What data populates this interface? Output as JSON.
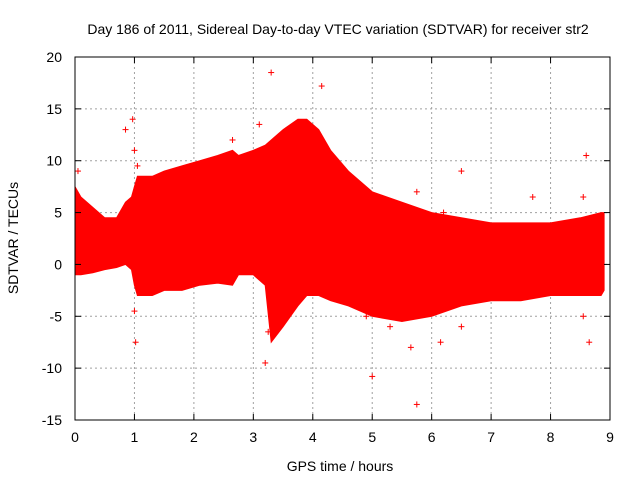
{
  "chart_data": {
    "type": "scatter",
    "title": "Day 186 of 2011, Sidereal Day-to-day VTEC variation (SDTVAR) for receiver str2",
    "xlabel": "GPS time / hours",
    "ylabel": "SDTVAR / TECUs",
    "xlim": [
      0,
      9
    ],
    "ylim": [
      -15,
      20
    ],
    "xticks": [
      0,
      1,
      2,
      3,
      4,
      5,
      6,
      7,
      8,
      9
    ],
    "yticks": [
      -15,
      -10,
      -5,
      0,
      5,
      10,
      15,
      20
    ],
    "grid": true,
    "series": [
      {
        "name": "str2",
        "color": "#ff0000",
        "marker": "+",
        "envelope_x": [
          0,
          0.1,
          0.3,
          0.5,
          0.7,
          0.85,
          0.95,
          1.0,
          1.05,
          1.3,
          1.5,
          1.8,
          2.1,
          2.4,
          2.65,
          2.75,
          3.0,
          3.2,
          3.3,
          3.5,
          3.75,
          3.9,
          4.1,
          4.3,
          4.6,
          5.0,
          5.5,
          6.0,
          6.5,
          7.0,
          7.5,
          8.0,
          8.5,
          8.85,
          8.9
        ],
        "envelope_upper": [
          7.5,
          6.5,
          5.5,
          4.5,
          4.5,
          6.0,
          6.5,
          7.5,
          8.5,
          8.5,
          9.0,
          9.5,
          10.0,
          10.5,
          11.0,
          10.5,
          11.0,
          11.5,
          12.0,
          13.0,
          14.0,
          14.0,
          13.0,
          11.0,
          9.0,
          7.0,
          6.0,
          5.0,
          4.5,
          4.0,
          4.0,
          4.0,
          4.5,
          5.0,
          5.0
        ],
        "envelope_lower": [
          -1.0,
          -1.0,
          -0.8,
          -0.5,
          -0.3,
          0.0,
          -0.5,
          -2.0,
          -3.0,
          -3.0,
          -2.5,
          -2.5,
          -2.0,
          -1.8,
          -2.0,
          -1.0,
          -1.0,
          -2.0,
          -7.5,
          -6.0,
          -4.0,
          -3.0,
          -3.0,
          -3.5,
          -4.0,
          -5.0,
          -5.5,
          -5.0,
          -4.0,
          -3.5,
          -3.5,
          -3.0,
          -3.0,
          -3.0,
          -2.5
        ],
        "spikes": [
          [
            0.05,
            9.0
          ],
          [
            0.85,
            13.0
          ],
          [
            0.97,
            14.0
          ],
          [
            1.0,
            11.0
          ],
          [
            1.05,
            9.5
          ],
          [
            2.65,
            12.0
          ],
          [
            3.1,
            13.5
          ],
          [
            3.3,
            18.5
          ],
          [
            4.15,
            17.2
          ],
          [
            5.05,
            6.5
          ],
          [
            5.75,
            7.0
          ],
          [
            6.5,
            9.0
          ],
          [
            6.2,
            5.0
          ],
          [
            7.7,
            6.5
          ],
          [
            8.6,
            10.5
          ],
          [
            8.55,
            6.5
          ],
          [
            1.0,
            -4.5
          ],
          [
            1.02,
            -7.5
          ],
          [
            3.2,
            -9.5
          ],
          [
            3.25,
            -6.5
          ],
          [
            4.9,
            -5.0
          ],
          [
            5.0,
            -10.8
          ],
          [
            5.3,
            -6.0
          ],
          [
            5.65,
            -8.0
          ],
          [
            5.75,
            -13.5
          ],
          [
            6.15,
            -7.5
          ],
          [
            6.5,
            -6.0
          ],
          [
            8.65,
            -7.5
          ],
          [
            8.55,
            -5.0
          ]
        ]
      }
    ]
  }
}
